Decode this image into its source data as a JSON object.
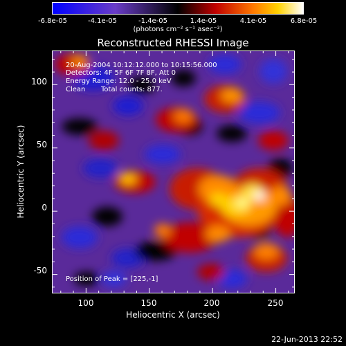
{
  "colorbar": {
    "ticks": [
      "-6.8e-05",
      "-4.1e-05",
      "-1.4e-05",
      "1.4e-05",
      "4.1e-05",
      "6.8e-05"
    ],
    "unit": "(photons cm⁻² s⁻¹ asec⁻²)",
    "range": [
      -6.8e-05,
      6.8e-05
    ]
  },
  "chart_data": {
    "type": "heatmap",
    "title": "Reconstructed RHESSI Image",
    "xlabel": "Heliocentric X (arcsec)",
    "ylabel": "Heliocentric Y (arcsec)",
    "xlim": [
      73,
      265
    ],
    "ylim": [
      -65,
      127
    ],
    "xticks": [
      "100",
      "150",
      "200",
      "250"
    ],
    "yticks": [
      "100",
      "50",
      "0",
      "-50"
    ],
    "xtick_values": [
      100,
      150,
      200,
      250
    ],
    "ytick_values": [
      100,
      50,
      0,
      -50
    ],
    "annotations": [
      "20-Aug-2004 10:12:12.000 to 10:15:56.000",
      "Detectors: 4F 5F 6F 7F 8F, Att 0",
      "Energy Range: 12.0 - 25.0 keV",
      "Clean",
      "Total counts: 877.",
      "Position of Peak = [225,-1]"
    ],
    "peak": [
      225,
      -1
    ]
  },
  "timestamp": "22-Jun-2013 22:52"
}
